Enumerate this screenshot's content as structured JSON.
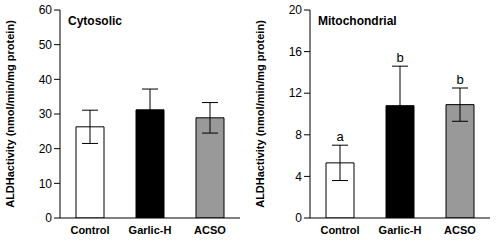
{
  "chart_data": [
    {
      "type": "bar",
      "title": "Cytosolic",
      "y_label": "ALDHactivity (nmol/min/mg protein)",
      "categories": [
        "Control",
        "Garlic-H",
        "ACSO"
      ],
      "values": [
        26.3,
        31.2,
        28.9
      ],
      "errors": [
        4.8,
        6.0,
        4.4
      ],
      "colors": [
        "#ffffff",
        "#000000",
        "#999999"
      ],
      "ylim": [
        0,
        60
      ],
      "yticks": [
        0,
        10,
        20,
        30,
        40,
        50,
        60
      ]
    },
    {
      "type": "bar",
      "title": "Mitochondrial",
      "y_label": "ALDHactivity (nmol/min/mg protein)",
      "categories": [
        "Control",
        "Garlic-H",
        "ACSO"
      ],
      "values": [
        5.3,
        10.8,
        10.9
      ],
      "errors": [
        1.7,
        3.8,
        1.6
      ],
      "colors": [
        "#ffffff",
        "#000000",
        "#999999"
      ],
      "annotations": [
        "a",
        "b",
        "b"
      ],
      "ylim": [
        0,
        20
      ],
      "yticks": [
        0,
        4,
        8,
        12,
        16,
        20
      ]
    }
  ]
}
